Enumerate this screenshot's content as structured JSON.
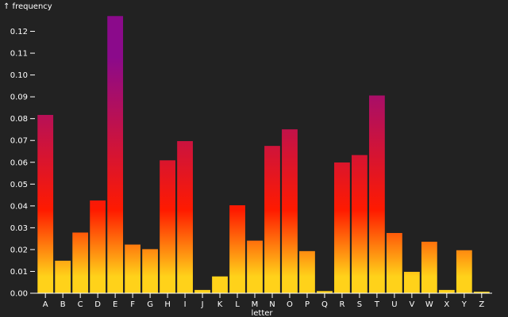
{
  "chart_data": {
    "type": "bar",
    "ylabel": "↑ frequency",
    "xlabel": "letter",
    "categories": [
      "A",
      "B",
      "C",
      "D",
      "E",
      "F",
      "G",
      "H",
      "I",
      "J",
      "K",
      "L",
      "M",
      "N",
      "O",
      "P",
      "Q",
      "R",
      "S",
      "T",
      "U",
      "V",
      "W",
      "X",
      "Y",
      "Z"
    ],
    "values": [
      0.0817,
      0.0149,
      0.0278,
      0.0425,
      0.127,
      0.0223,
      0.0202,
      0.0609,
      0.0697,
      0.0015,
      0.0077,
      0.0403,
      0.0241,
      0.0675,
      0.0751,
      0.0193,
      0.001,
      0.0599,
      0.0633,
      0.0906,
      0.0276,
      0.0098,
      0.0236,
      0.0015,
      0.0197,
      0.0007
    ],
    "ylim": [
      0,
      0.13
    ],
    "yticks": [
      "0.00",
      "0.01",
      "0.02",
      "0.03",
      "0.04",
      "0.05",
      "0.06",
      "0.07",
      "0.08",
      "0.09",
      "0.10",
      "0.11",
      "0.12"
    ],
    "grid": false,
    "colors": {
      "background": "#222222",
      "text": "#ffffff",
      "bar_gradient": [
        "#ffd21a",
        "#ff1a00",
        "#8b0a8b"
      ]
    }
  }
}
